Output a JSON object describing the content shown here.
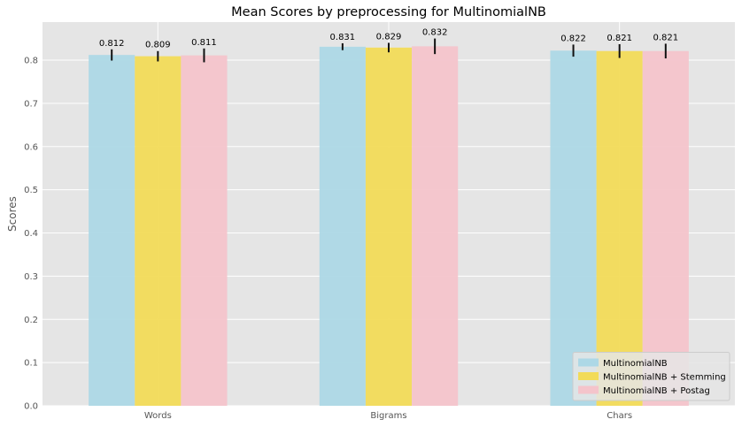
{
  "chart_data": {
    "type": "bar",
    "title": "Mean Scores by preprocessing for MultinomialNB",
    "xlabel": "",
    "ylabel": "Scores",
    "categories": [
      "Words",
      "Bigrams",
      "Chars"
    ],
    "ylim": [
      0,
      0.888
    ],
    "yticks": [
      "0.0",
      "0.1",
      "0.2",
      "0.3",
      "0.4",
      "0.5",
      "0.6",
      "0.7",
      "0.8"
    ],
    "grid": true,
    "legend_position": "bottom-right",
    "series": [
      {
        "name": "MultinomialNB",
        "color": "#ADD8E6",
        "values": [
          0.812,
          0.831,
          0.822
        ],
        "errors": [
          0.013,
          0.008,
          0.014
        ],
        "labels": [
          "0.812",
          "0.831",
          "0.822"
        ]
      },
      {
        "name": "MultinomialNB + Stemming",
        "color": "#F2DB58",
        "values": [
          0.809,
          0.829,
          0.821
        ],
        "errors": [
          0.012,
          0.011,
          0.016
        ],
        "labels": [
          "0.809",
          "0.829",
          "0.821"
        ]
      },
      {
        "name": "MultinomialNB + Postag",
        "color": "#F4C4CB",
        "values": [
          0.811,
          0.832,
          0.821
        ],
        "errors": [
          0.016,
          0.018,
          0.017
        ],
        "labels": [
          "0.811",
          "0.832",
          "0.821"
        ]
      }
    ]
  }
}
